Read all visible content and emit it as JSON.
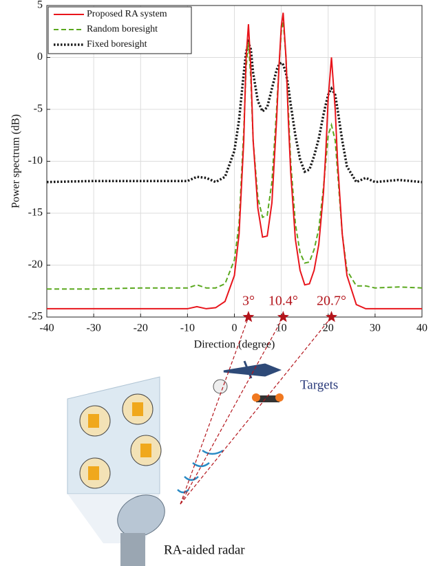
{
  "chart_data": {
    "type": "line",
    "xlabel": "Direction (degree)",
    "ylabel": "Power spectrum (dB)",
    "x": [
      -40,
      -30,
      -20,
      -10,
      -8,
      -6,
      -4,
      -2,
      0,
      1,
      2,
      2.5,
      3,
      3.5,
      4,
      5,
      6,
      7,
      8,
      9,
      9.5,
      10,
      10.4,
      11,
      11.5,
      12,
      13,
      14,
      15,
      16,
      17,
      18,
      19,
      19.5,
      20,
      20.7,
      21.5,
      22,
      23,
      24,
      26,
      28,
      30,
      35,
      40
    ],
    "series": [
      {
        "name": "Proposed RA system",
        "color": "#e8141b",
        "style": "solid",
        "values": [
          -24.2,
          -24.2,
          -24.2,
          -24.2,
          -24.0,
          -24.2,
          -24.1,
          -23.5,
          -21,
          -17,
          -8,
          0,
          3.2,
          -1,
          -8,
          -14.5,
          -17.3,
          -17.2,
          -14,
          -6,
          -1,
          3,
          4.3,
          0,
          -6,
          -11,
          -17.5,
          -20.5,
          -21.9,
          -21.8,
          -20.5,
          -18,
          -13,
          -9,
          -4,
          0,
          -5,
          -10,
          -17,
          -21,
          -23.8,
          -24.2,
          -24.2,
          -24.2,
          -24.2
        ]
      },
      {
        "name": "Random boresight",
        "color": "#5aa81e",
        "style": "dashed",
        "values": [
          -22.3,
          -22.3,
          -22.2,
          -22.2,
          -21.9,
          -22.2,
          -22.2,
          -21.8,
          -19.5,
          -16,
          -7,
          -1,
          1.5,
          -2,
          -8,
          -13.5,
          -15.4,
          -15.2,
          -12,
          -5,
          -1,
          2.5,
          3.5,
          0,
          -5,
          -10,
          -16,
          -18.8,
          -19.8,
          -19.7,
          -18.5,
          -16.5,
          -12.5,
          -10,
          -7.5,
          -6.5,
          -8,
          -11,
          -17,
          -20.5,
          -22,
          -22,
          -22.2,
          -22.1,
          -22.2
        ]
      },
      {
        "name": "Fixed boresight",
        "color": "#1a1a1a",
        "style": "dotted",
        "values": [
          -12,
          -11.9,
          -11.9,
          -11.9,
          -11.5,
          -11.6,
          -12,
          -11.5,
          -9,
          -6,
          -1.5,
          0.5,
          1.4,
          0.8,
          -1.5,
          -4.2,
          -5.2,
          -4.8,
          -3,
          -1.2,
          -0.7,
          -0.5,
          -0.7,
          -1.5,
          -2.8,
          -4.5,
          -7.5,
          -9.8,
          -11,
          -10.8,
          -9.5,
          -7.8,
          -5.5,
          -4.5,
          -3.6,
          -3,
          -3.6,
          -5,
          -8,
          -10.5,
          -12,
          -11.6,
          -12,
          -11.8,
          -12
        ]
      }
    ],
    "xlim": [
      -40,
      40
    ],
    "ylim": [
      -25,
      5
    ],
    "xticks": [
      -40,
      -30,
      -20,
      -10,
      0,
      10,
      20,
      30,
      40
    ],
    "yticks": [
      -25,
      -20,
      -15,
      -10,
      -5,
      0,
      5
    ],
    "grid": true,
    "legend": "upper left",
    "targets": {
      "x": [
        3,
        10.4,
        20.7
      ],
      "labels": [
        "3°",
        "10.4°",
        "20.7°"
      ],
      "color": "#b3141b"
    }
  },
  "illustration": {
    "targets_label": "Targets",
    "radar_label": "RA-aided radar"
  }
}
